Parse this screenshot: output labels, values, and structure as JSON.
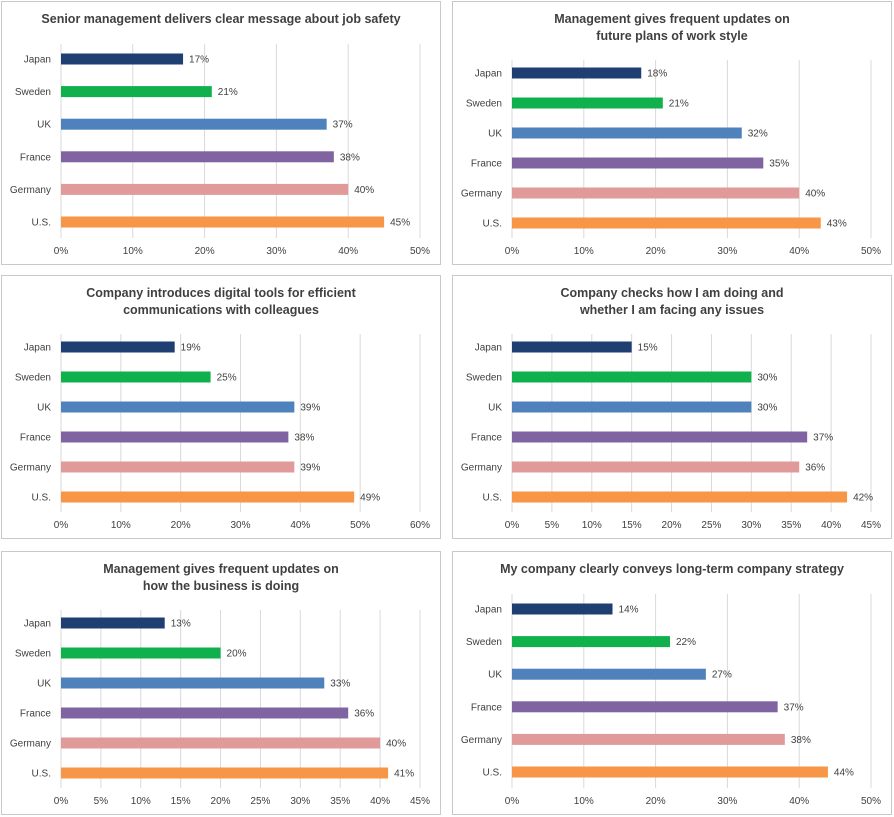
{
  "colors": {
    "Japan": "#1f3f73",
    "Sweden": "#10b04c",
    "UK": "#4f81bd",
    "France": "#8064a2",
    "Germany": "#e09a9a",
    "U.S.": "#f79646"
  },
  "chart_data": [
    {
      "type": "bar",
      "orientation": "horizontal",
      "title_lines": [
        "Senior management delivers clear message about job safety"
      ],
      "categories": [
        "Japan",
        "Sweden",
        "UK",
        "France",
        "Germany",
        "U.S."
      ],
      "values": [
        17,
        21,
        37,
        38,
        40,
        45
      ],
      "value_labels": [
        "17%",
        "21%",
        "37%",
        "38%",
        "40%",
        "45%"
      ],
      "xlim": [
        0,
        50
      ],
      "ticks": [
        "0%",
        "10%",
        "20%",
        "30%",
        "40%",
        "50%"
      ],
      "grid": true
    },
    {
      "type": "bar",
      "orientation": "horizontal",
      "title_lines": [
        "Management gives frequent updates on",
        "future plans of work style"
      ],
      "categories": [
        "Japan",
        "Sweden",
        "UK",
        "France",
        "Germany",
        "U.S."
      ],
      "values": [
        18,
        21,
        32,
        35,
        40,
        43
      ],
      "value_labels": [
        "18%",
        "21%",
        "32%",
        "35%",
        "40%",
        "43%"
      ],
      "xlim": [
        0,
        50
      ],
      "ticks": [
        "0%",
        "10%",
        "20%",
        "30%",
        "40%",
        "50%"
      ],
      "grid": true
    },
    {
      "type": "bar",
      "orientation": "horizontal",
      "title_lines": [
        "Company introduces digital tools for efficient",
        "communications with colleagues"
      ],
      "categories": [
        "Japan",
        "Sweden",
        "UK",
        "France",
        "Germany",
        "U.S."
      ],
      "values": [
        19,
        25,
        39,
        38,
        39,
        49
      ],
      "value_labels": [
        "19%",
        "25%",
        "39%",
        "38%",
        "39%",
        "49%"
      ],
      "xlim": [
        0,
        60
      ],
      "ticks": [
        "0%",
        "10%",
        "20%",
        "30%",
        "40%",
        "50%",
        "60%"
      ],
      "grid": true
    },
    {
      "type": "bar",
      "orientation": "horizontal",
      "title_lines": [
        "Company checks how I am doing and",
        "whether I am facing any issues"
      ],
      "categories": [
        "Japan",
        "Sweden",
        "UK",
        "France",
        "Germany",
        "U.S."
      ],
      "values": [
        15,
        30,
        30,
        37,
        36,
        42
      ],
      "value_labels": [
        "15%",
        "30%",
        "30%",
        "37%",
        "36%",
        "42%"
      ],
      "xlim": [
        0,
        45
      ],
      "ticks": [
        "0%",
        "5%",
        "10%",
        "15%",
        "20%",
        "25%",
        "30%",
        "35%",
        "40%",
        "45%"
      ],
      "grid": true
    },
    {
      "type": "bar",
      "orientation": "horizontal",
      "title_lines": [
        "Management gives frequent updates on",
        "how the business is doing"
      ],
      "categories": [
        "Japan",
        "Sweden",
        "UK",
        "France",
        "Germany",
        "U.S."
      ],
      "values": [
        13,
        20,
        33,
        36,
        40,
        41
      ],
      "value_labels": [
        "13%",
        "20%",
        "33%",
        "36%",
        "40%",
        "41%"
      ],
      "xlim": [
        0,
        45
      ],
      "ticks": [
        "0%",
        "5%",
        "10%",
        "15%",
        "20%",
        "25%",
        "30%",
        "35%",
        "40%",
        "45%"
      ],
      "grid": true
    },
    {
      "type": "bar",
      "orientation": "horizontal",
      "title_lines": [
        "My company clearly conveys long-term company strategy"
      ],
      "categories": [
        "Japan",
        "Sweden",
        "UK",
        "France",
        "Germany",
        "U.S."
      ],
      "values": [
        14,
        22,
        27,
        37,
        38,
        44
      ],
      "value_labels": [
        "14%",
        "22%",
        "27%",
        "37%",
        "38%",
        "44%"
      ],
      "xlim": [
        0,
        50
      ],
      "ticks": [
        "0%",
        "10%",
        "20%",
        "30%",
        "40%",
        "50%"
      ],
      "grid": true
    }
  ]
}
